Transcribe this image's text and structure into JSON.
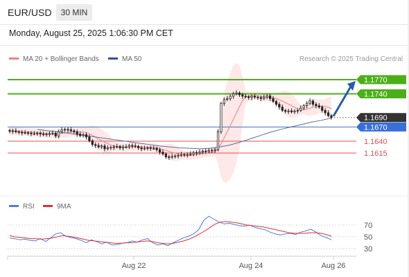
{
  "header": {
    "symbol": "EUR/USD",
    "timeframe": "30 MIN",
    "datetime": "Monday, August 25, 2025 1:06:30 PM CET"
  },
  "legend": {
    "ma20": "MA 20 + Bollinger Bands",
    "ma50": "MA 50",
    "credit": "Research © 2025 Trading Central",
    "rsi": "RSI",
    "rsi_ma": "9MA"
  },
  "colors": {
    "candle": "#222222",
    "ma20": "#f08080",
    "ma50": "#3b5998",
    "bollinger_fill": "#fde0e0",
    "resistance": "#4caf1a",
    "support": "#e05050",
    "pivot": "#3a6fd8",
    "current": "#333333",
    "arrow": "#2b5aa8",
    "rsi": "#4a7de0",
    "rsi_ma": "#e03030"
  },
  "chart_data": [
    {
      "type": "candlestick",
      "title": "EUR/USD",
      "x_ticks": [
        "Aug 22",
        "Aug 24",
        "Aug 26"
      ],
      "ylim": [
        1.157,
        1.179
      ],
      "levels": [
        {
          "label": "1.1770",
          "value": 1.177,
          "kind": "resistance"
        },
        {
          "label": "1.1740",
          "value": 1.174,
          "kind": "resistance"
        },
        {
          "label": "1.1690",
          "value": 1.169,
          "kind": "current"
        },
        {
          "label": "1.1670",
          "value": 1.167,
          "kind": "pivot"
        },
        {
          "label": "1.1640",
          "value": 1.164,
          "kind": "support"
        },
        {
          "label": "1.1615",
          "value": 1.1615,
          "kind": "support"
        }
      ],
      "close": [
        1.1661,
        1.1662,
        1.166,
        1.1659,
        1.1658,
        1.1658,
        1.1657,
        1.1656,
        1.1656,
        1.1657,
        1.1655,
        1.1654,
        1.1655,
        1.1656,
        1.1657,
        1.1651,
        1.166,
        1.1664,
        1.1665,
        1.1664,
        1.1662,
        1.166,
        1.1655,
        1.1652,
        1.1654,
        1.1649,
        1.1641,
        1.1633,
        1.1631,
        1.1628,
        1.163,
        1.1624,
        1.1626,
        1.1627,
        1.1628,
        1.1629,
        1.1626,
        1.1628,
        1.1628,
        1.1631,
        1.163,
        1.1629,
        1.1626,
        1.1624,
        1.1625,
        1.1626,
        1.1625,
        1.1625,
        1.1622,
        1.1617,
        1.1613,
        1.1607,
        1.1606,
        1.1608,
        1.1609,
        1.161,
        1.1612,
        1.1611,
        1.1612,
        1.1613,
        1.1616,
        1.1615,
        1.1617,
        1.1619,
        1.1618,
        1.162,
        1.1621,
        1.1622,
        1.166,
        1.172,
        1.1728,
        1.173,
        1.1735,
        1.174,
        1.1742,
        1.1738,
        1.1735,
        1.1734,
        1.1732,
        1.1735,
        1.1733,
        1.1732,
        1.173,
        1.1733,
        1.1736,
        1.173,
        1.1724,
        1.1718,
        1.1712,
        1.1705,
        1.1703,
        1.1704,
        1.1702,
        1.1704,
        1.1705,
        1.171,
        1.1715,
        1.172,
        1.1725,
        1.1718,
        1.1715,
        1.1712,
        1.1705,
        1.17,
        1.1694,
        1.169
      ],
      "ma50": [
        1.1665,
        1.1662,
        1.166,
        1.1657,
        1.1654,
        1.1651,
        1.1648,
        1.1645,
        1.1642,
        1.1639,
        1.1636,
        1.1633,
        1.163,
        1.1628,
        1.1626,
        1.1625,
        1.1624,
        1.1625,
        1.1628,
        1.1632,
        1.1638,
        1.1645,
        1.1652,
        1.1659,
        1.1665,
        1.167,
        1.1675,
        1.168,
        1.1684,
        1.1689
      ],
      "rsi": [
        48,
        47,
        45,
        46,
        44,
        43,
        47,
        42,
        48,
        55,
        57,
        51,
        49,
        47,
        44,
        40,
        45,
        42,
        38,
        41,
        36,
        37,
        39,
        40,
        43,
        41,
        45,
        47,
        40,
        36,
        38,
        35,
        40,
        44,
        48,
        51,
        55,
        62,
        78,
        85,
        80,
        75,
        72,
        73,
        71,
        69,
        68,
        70,
        66,
        64,
        62,
        58,
        55,
        53,
        55,
        56,
        54,
        58,
        60,
        63,
        58,
        52,
        49,
        45
      ],
      "rsi_ma": [
        52,
        50,
        49,
        48,
        47,
        47,
        46,
        47,
        48,
        50,
        52,
        51,
        50,
        48,
        46,
        44,
        43,
        42,
        41,
        40,
        39,
        39,
        40,
        40,
        41,
        42,
        43,
        42,
        40,
        39,
        38,
        39,
        41,
        43,
        46,
        50,
        55,
        60,
        66,
        72,
        75,
        76,
        75,
        74,
        72,
        70,
        69,
        68,
        67,
        65,
        63,
        61,
        59,
        57,
        56,
        56,
        56,
        57,
        57,
        56,
        54,
        51
      ]
    }
  ],
  "rsi_axis": {
    "labels": [
      "70",
      "50",
      "30"
    ],
    "values": [
      70,
      50,
      30
    ]
  }
}
